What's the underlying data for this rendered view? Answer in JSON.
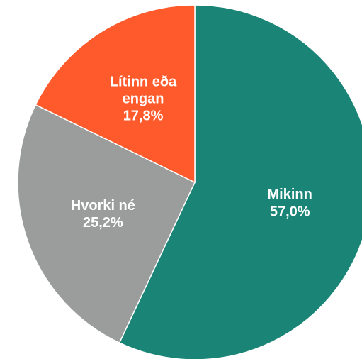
{
  "chart_data": {
    "type": "pie",
    "categories": [
      "Mikinn",
      "Hvorki né",
      "Lítinn eða engan"
    ],
    "values": [
      57.0,
      25.2,
      17.8
    ],
    "value_labels": [
      "57,0%",
      "25,2%",
      "17,8%"
    ],
    "colors": [
      "#1a8577",
      "#9b9d9d",
      "#fe5a2b"
    ]
  }
}
